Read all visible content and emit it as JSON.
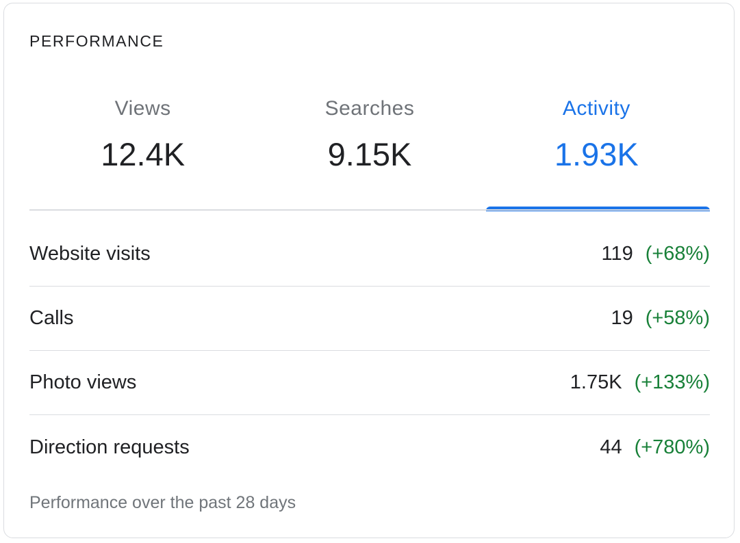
{
  "card": {
    "title": "PERFORMANCE"
  },
  "tabs": [
    {
      "label": "Views",
      "value": "12.4K",
      "active": false
    },
    {
      "label": "Searches",
      "value": "9.15K",
      "active": false
    },
    {
      "label": "Activity",
      "value": "1.93K",
      "active": true
    }
  ],
  "metrics": [
    {
      "label": "Website visits",
      "value": "119",
      "change": "(+68%)"
    },
    {
      "label": "Calls",
      "value": "19",
      "change": "(+58%)"
    },
    {
      "label": "Photo views",
      "value": "1.75K",
      "change": "(+133%)"
    },
    {
      "label": "Direction requests",
      "value": "44",
      "change": "(+780%)"
    }
  ],
  "footnote": "Performance over the past 28 days",
  "colors": {
    "accent": "#1a73e8",
    "positive_change": "#188038",
    "muted_text": "#70757a",
    "divider": "#dadce0"
  }
}
